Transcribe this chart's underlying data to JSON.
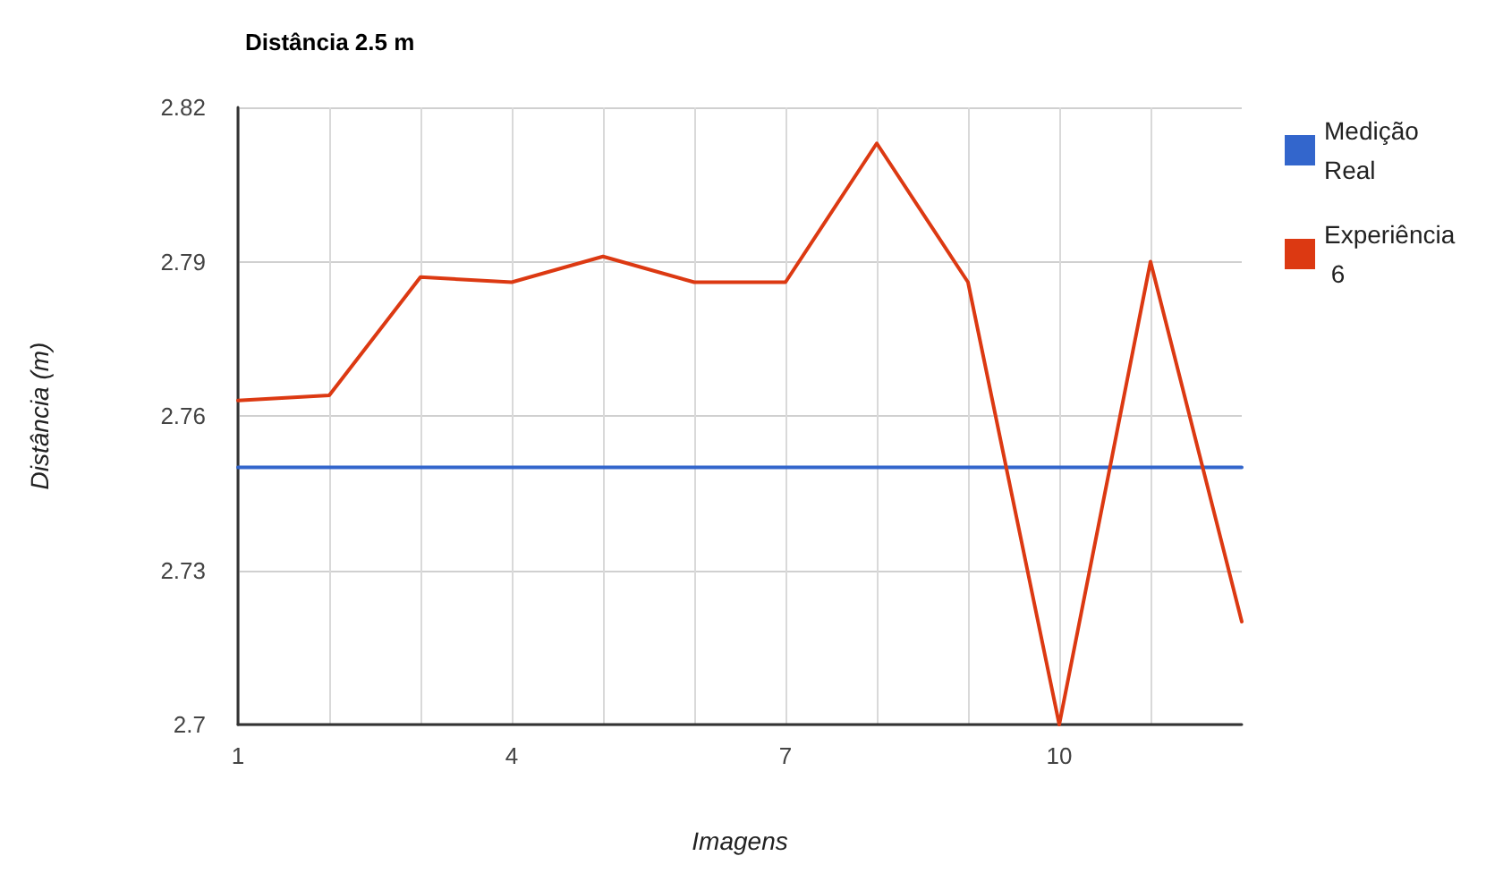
{
  "chart_data": {
    "type": "line",
    "title": "Distância 2.5 m",
    "xlabel": "Imagens",
    "ylabel": "Distância (m)",
    "x": [
      1,
      2,
      3,
      4,
      5,
      6,
      7,
      8,
      9,
      10,
      11,
      12
    ],
    "series": [
      {
        "name": "Medição Real",
        "color": "#3366cc",
        "values": [
          2.75,
          2.75,
          2.75,
          2.75,
          2.75,
          2.75,
          2.75,
          2.75,
          2.75,
          2.75,
          2.75,
          2.75
        ]
      },
      {
        "name": "Experiência 6",
        "color": "#dc3912",
        "values": [
          2.763,
          2.764,
          2.787,
          2.786,
          2.791,
          2.786,
          2.786,
          2.813,
          2.786,
          2.7,
          2.79,
          2.72
        ]
      }
    ],
    "xlim": [
      1,
      12
    ],
    "xticks": [
      1,
      {
        "value": 2,
        "label": null
      },
      {
        "value": 3,
        "label": null
      },
      4,
      {
        "value": 5,
        "label": null
      },
      {
        "value": 6,
        "label": null
      },
      7,
      {
        "value": 8,
        "label": null
      },
      {
        "value": 9,
        "label": null
      },
      10,
      {
        "value": 11,
        "label": null
      }
    ],
    "ylim": [
      2.7,
      2.82
    ],
    "yticks": [
      2.7,
      2.73,
      2.76,
      2.79,
      2.82
    ],
    "grid": true,
    "legend": "top right",
    "marker": "none",
    "line_style": "solid"
  }
}
